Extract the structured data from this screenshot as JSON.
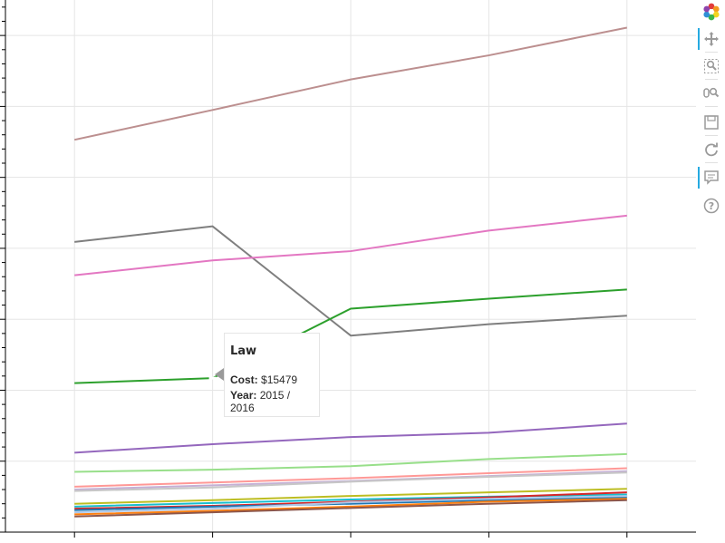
{
  "chart_data": {
    "type": "line",
    "title": "",
    "xlabel": "",
    "ylabel": "",
    "x": [
      2013,
      2014,
      2015,
      2016,
      2017
    ],
    "x_tick_labels_visible": false,
    "y_tick_labels_visible": false,
    "ylim": [
      0,
      75000
    ],
    "grid": true,
    "legend": "none",
    "series": [
      {
        "color": "#bc8f8f",
        "values": [
          55300,
          59500,
          63800,
          67200,
          71100
        ]
      },
      {
        "color": "#7f7f7f",
        "values": [
          40900,
          43100,
          27700,
          29300,
          30500
        ]
      },
      {
        "color": "#e377c2",
        "values": [
          36200,
          38300,
          39600,
          42500,
          44600
        ]
      },
      {
        "color": "#2ca02c",
        "values": [
          21000,
          21700,
          31500,
          32900,
          34200
        ]
      },
      {
        "color": "#9467bd",
        "values": [
          11200,
          12400,
          13400,
          14000,
          15300
        ]
      },
      {
        "color": "#98df8a",
        "values": [
          8500,
          8800,
          9300,
          10300,
          11000
        ]
      },
      {
        "color": "#ff9896",
        "values": [
          6400,
          7000,
          7600,
          8300,
          9000
        ]
      },
      {
        "color": "#c5b0d5",
        "values": [
          6000,
          6600,
          7200,
          7900,
          8600
        ]
      },
      {
        "color": "#c7c7c7",
        "values": [
          5800,
          6300,
          7100,
          7800,
          8400
        ]
      },
      {
        "color": "#bcbd22",
        "values": [
          4000,
          4500,
          5100,
          5600,
          6100
        ]
      },
      {
        "color": "#17becf",
        "values": [
          3600,
          4100,
          4600,
          5000,
          5300
        ]
      },
      {
        "color": "#d62728",
        "values": [
          3300,
          3700,
          4300,
          4900,
          5600
        ]
      },
      {
        "color": "#1f77b4",
        "values": [
          3100,
          3600,
          4000,
          4500,
          4900
        ]
      },
      {
        "color": "#aec7e8",
        "values": [
          2800,
          3300,
          4200,
          4700,
          5100
        ]
      },
      {
        "color": "#ff7f0e",
        "values": [
          2500,
          3000,
          3600,
          4300,
          4700
        ]
      },
      {
        "color": "#8c564b",
        "values": [
          2200,
          2800,
          3400,
          4000,
          4500
        ]
      }
    ],
    "tooltip": {
      "title": "Law",
      "rows": [
        {
          "key": "Cost:",
          "value": "$15479"
        },
        {
          "key": "Year:",
          "value": "2015 / 2016"
        }
      ]
    }
  },
  "toolbar": {
    "tools": [
      {
        "icon": "bokeh-logo-icon",
        "active": false
      },
      {
        "icon": "pan-icon",
        "active": true
      },
      {
        "icon": "box-zoom-icon",
        "active": false
      },
      {
        "icon": "wheel-zoom-icon",
        "active": false
      },
      {
        "icon": "save-icon",
        "active": false
      },
      {
        "icon": "reset-icon",
        "active": false
      },
      {
        "icon": "hover-icon",
        "active": true
      },
      {
        "icon": "help-icon",
        "active": false
      }
    ]
  }
}
